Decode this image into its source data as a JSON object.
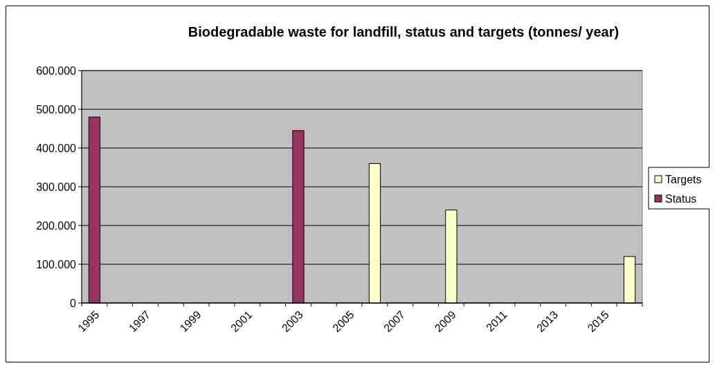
{
  "chart_data": {
    "type": "bar",
    "title": "Biodegradable waste for landfill, status and targets (tonnes/ year)",
    "categories": [
      "1995",
      null,
      "1997",
      null,
      "1999",
      null,
      "2001",
      null,
      "2003",
      null,
      "2005",
      null,
      "2007",
      null,
      "2009",
      null,
      "2011",
      null,
      "2013",
      null,
      "2015",
      null
    ],
    "series": [
      {
        "name": "Targets",
        "color": "#ffffcc",
        "values": [
          null,
          null,
          null,
          null,
          null,
          null,
          null,
          null,
          null,
          null,
          null,
          360000,
          null,
          null,
          240000,
          null,
          null,
          null,
          null,
          null,
          null,
          120000
        ]
      },
      {
        "name": "Status",
        "color": "#993366",
        "values": [
          480000,
          null,
          null,
          null,
          null,
          null,
          null,
          null,
          445000,
          null,
          null,
          null,
          null,
          null,
          null,
          null,
          null,
          null,
          null,
          null,
          null,
          null
        ]
      }
    ],
    "ylim": [
      0,
      600000
    ],
    "yticks": [
      {
        "value": 0,
        "label": "0"
      },
      {
        "value": 100000,
        "label": "100.000"
      },
      {
        "value": 200000,
        "label": "200.000"
      },
      {
        "value": 300000,
        "label": "300.000"
      },
      {
        "value": 400000,
        "label": "400.000"
      },
      {
        "value": 500000,
        "label": "500.000"
      },
      {
        "value": 600000,
        "label": "600.000"
      }
    ],
    "grid": "y",
    "legend": "right"
  }
}
